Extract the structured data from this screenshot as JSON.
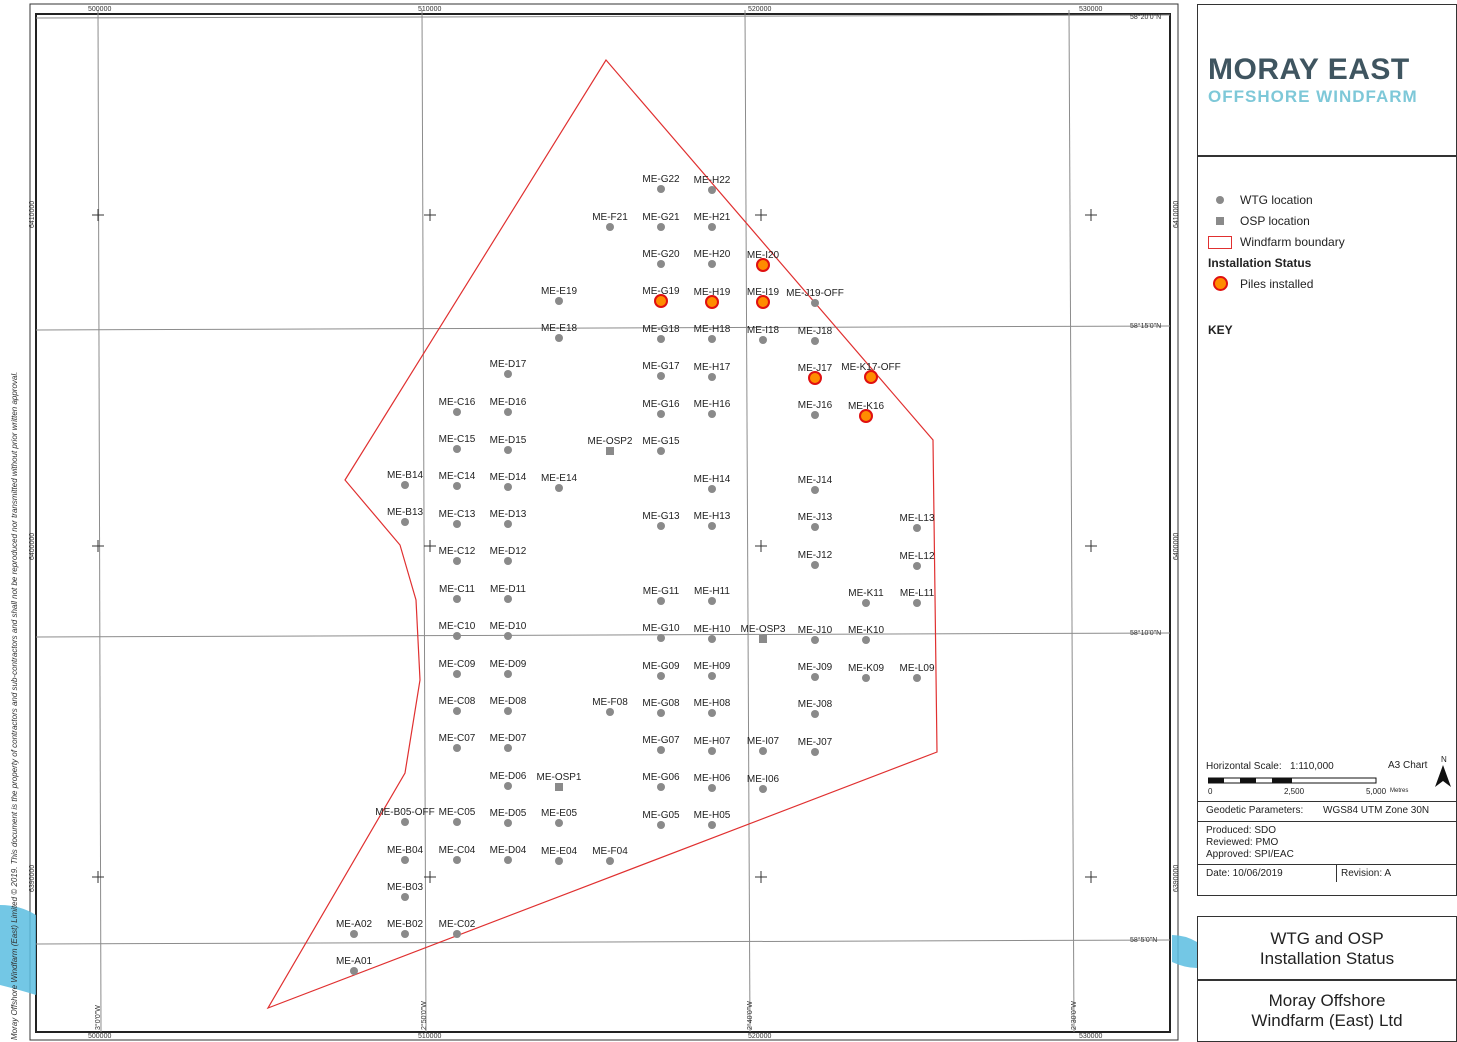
{
  "grid_labels": {
    "top": [
      "500000",
      "510000",
      "520000",
      "530000"
    ],
    "bottom": [
      "500000",
      "510000",
      "520000",
      "530000"
    ],
    "left": [
      "6410000",
      "6400000",
      "6390000"
    ],
    "right": [
      "6410000",
      "6400000",
      "6390000"
    ],
    "lat": [
      "58°20'0\"N",
      "58°15'0\"N",
      "58°10'0\"N",
      "58°5'0\"N"
    ],
    "lon": [
      "3°0'0\"W",
      "2°50'0\"W",
      "2°40'0\"W",
      "2°30'0\"W"
    ]
  },
  "side_note": "Moray Offshore Windfarm (East) Limited © 2019. This document is the property of contractors and sub-contractors and shall not be reproduced nor transmitted without prior written approval.",
  "boundary_color": "#e03030",
  "wtg_color": "#8a8a8a",
  "piles_fill": "#ff8c00",
  "piles_stroke": "#e01010",
  "wtg": [
    {
      "label": "ME-A01",
      "installed": false
    },
    {
      "label": "ME-A02",
      "installed": false
    },
    {
      "label": "ME-B02",
      "installed": false
    },
    {
      "label": "ME-B03",
      "installed": false
    },
    {
      "label": "ME-B04",
      "installed": false
    },
    {
      "label": "ME-B05-OFF",
      "installed": false
    },
    {
      "label": "ME-B13",
      "installed": false
    },
    {
      "label": "ME-B14",
      "installed": false
    },
    {
      "label": "ME-C02",
      "installed": false
    },
    {
      "label": "ME-C04",
      "installed": false
    },
    {
      "label": "ME-C05",
      "installed": false
    },
    {
      "label": "ME-C07",
      "installed": false
    },
    {
      "label": "ME-C08",
      "installed": false
    },
    {
      "label": "ME-C09",
      "installed": false
    },
    {
      "label": "ME-C10",
      "installed": false
    },
    {
      "label": "ME-C11",
      "installed": false
    },
    {
      "label": "ME-C12",
      "installed": false
    },
    {
      "label": "ME-C13",
      "installed": false
    },
    {
      "label": "ME-C14",
      "installed": false
    },
    {
      "label": "ME-C15",
      "installed": false
    },
    {
      "label": "ME-C16",
      "installed": false
    },
    {
      "label": "ME-D04",
      "installed": false
    },
    {
      "label": "ME-D05",
      "installed": false
    },
    {
      "label": "ME-D06",
      "installed": false
    },
    {
      "label": "ME-D07",
      "installed": false
    },
    {
      "label": "ME-D08",
      "installed": false
    },
    {
      "label": "ME-D09",
      "installed": false
    },
    {
      "label": "ME-D10",
      "installed": false
    },
    {
      "label": "ME-D11",
      "installed": false
    },
    {
      "label": "ME-D12",
      "installed": false
    },
    {
      "label": "ME-D13",
      "installed": false
    },
    {
      "label": "ME-D14",
      "installed": false
    },
    {
      "label": "ME-D15",
      "installed": false
    },
    {
      "label": "ME-D16",
      "installed": false
    },
    {
      "label": "ME-D17",
      "installed": false
    },
    {
      "label": "ME-E04",
      "installed": false
    },
    {
      "label": "ME-E05",
      "installed": false
    },
    {
      "label": "ME-E14",
      "installed": false
    },
    {
      "label": "ME-E18",
      "installed": false
    },
    {
      "label": "ME-E19",
      "installed": false
    },
    {
      "label": "ME-F04",
      "installed": false
    },
    {
      "label": "ME-F08",
      "installed": false
    },
    {
      "label": "ME-F21",
      "installed": false
    },
    {
      "label": "ME-G05",
      "installed": false
    },
    {
      "label": "ME-G06",
      "installed": false
    },
    {
      "label": "ME-G07",
      "installed": false
    },
    {
      "label": "ME-G08",
      "installed": false
    },
    {
      "label": "ME-G09",
      "installed": false
    },
    {
      "label": "ME-G10",
      "installed": false
    },
    {
      "label": "ME-G11",
      "installed": false
    },
    {
      "label": "ME-G13",
      "installed": false
    },
    {
      "label": "ME-G15",
      "installed": false
    },
    {
      "label": "ME-G16",
      "installed": false
    },
    {
      "label": "ME-G17",
      "installed": false
    },
    {
      "label": "ME-G18",
      "installed": false
    },
    {
      "label": "ME-G19",
      "installed": true
    },
    {
      "label": "ME-G20",
      "installed": false
    },
    {
      "label": "ME-G21",
      "installed": false
    },
    {
      "label": "ME-G22",
      "installed": false
    },
    {
      "label": "ME-H05",
      "installed": false
    },
    {
      "label": "ME-H06",
      "installed": false
    },
    {
      "label": "ME-H07",
      "installed": false
    },
    {
      "label": "ME-H08",
      "installed": false
    },
    {
      "label": "ME-H09",
      "installed": false
    },
    {
      "label": "ME-H10",
      "installed": false
    },
    {
      "label": "ME-H11",
      "installed": false
    },
    {
      "label": "ME-H13",
      "installed": false
    },
    {
      "label": "ME-H14",
      "installed": false
    },
    {
      "label": "ME-H16",
      "installed": false
    },
    {
      "label": "ME-H17",
      "installed": false
    },
    {
      "label": "ME-H18",
      "installed": false
    },
    {
      "label": "ME-H19",
      "installed": true
    },
    {
      "label": "ME-H20",
      "installed": false
    },
    {
      "label": "ME-H21",
      "installed": false
    },
    {
      "label": "ME-H22",
      "installed": false
    },
    {
      "label": "ME-I06",
      "installed": false
    },
    {
      "label": "ME-I07",
      "installed": false
    },
    {
      "label": "ME-I18",
      "installed": false
    },
    {
      "label": "ME-I19",
      "installed": true
    },
    {
      "label": "ME-I20",
      "installed": true
    },
    {
      "label": "ME-J07",
      "installed": false
    },
    {
      "label": "ME-J08",
      "installed": false
    },
    {
      "label": "ME-J09",
      "installed": false
    },
    {
      "label": "ME-J10",
      "installed": false
    },
    {
      "label": "ME-J12",
      "installed": false
    },
    {
      "label": "ME-J13",
      "installed": false
    },
    {
      "label": "ME-J14",
      "installed": false
    },
    {
      "label": "ME-J16",
      "installed": false
    },
    {
      "label": "ME-J17",
      "installed": true
    },
    {
      "label": "ME-J18",
      "installed": false
    },
    {
      "label": "ME-J19-OFF",
      "installed": false
    },
    {
      "label": "ME-K09",
      "installed": false
    },
    {
      "label": "ME-K10",
      "installed": false
    },
    {
      "label": "ME-K11",
      "installed": false
    },
    {
      "label": "ME-K16",
      "installed": true
    },
    {
      "label": "ME-K17-OFF",
      "installed": true
    },
    {
      "label": "ME-L09",
      "installed": false
    },
    {
      "label": "ME-L11",
      "installed": false
    },
    {
      "label": "ME-L12",
      "installed": false
    },
    {
      "label": "ME-L13",
      "installed": false
    }
  ],
  "osp": [
    {
      "label": "ME-OSP1"
    },
    {
      "label": "ME-OSP2"
    },
    {
      "label": "ME-OSP3"
    }
  ],
  "logo": {
    "main": "MORAY EAST",
    "sub": "OFFSHORE WINDFARM"
  },
  "key": {
    "title": "KEY",
    "wtg": "WTG location",
    "osp": "OSP location",
    "boundary": "Windfarm boundary",
    "status_title": "Installation Status",
    "piles": "Piles installed"
  },
  "scale": {
    "label": "Horizontal Scale:",
    "value": "1:110,000",
    "sheet": "A3 Chart",
    "ticks": [
      "0",
      "2,500",
      "5,000"
    ],
    "unit": "Metres",
    "north": "N"
  },
  "geodetic": {
    "label": "Geodetic Parameters:",
    "value": "WGS84 UTM Zone 30N"
  },
  "approval": {
    "produced": "Produced: SDO",
    "reviewed": "Reviewed: PMO",
    "approved": "Approved: SPI/EAC"
  },
  "date": "Date: 10/06/2019",
  "revision": "Revision: A",
  "title": {
    "line1": "WTG and OSP",
    "line2": "Installation Status"
  },
  "company": {
    "line1": "Moray Offshore",
    "line2": "Windfarm (East) Ltd"
  }
}
